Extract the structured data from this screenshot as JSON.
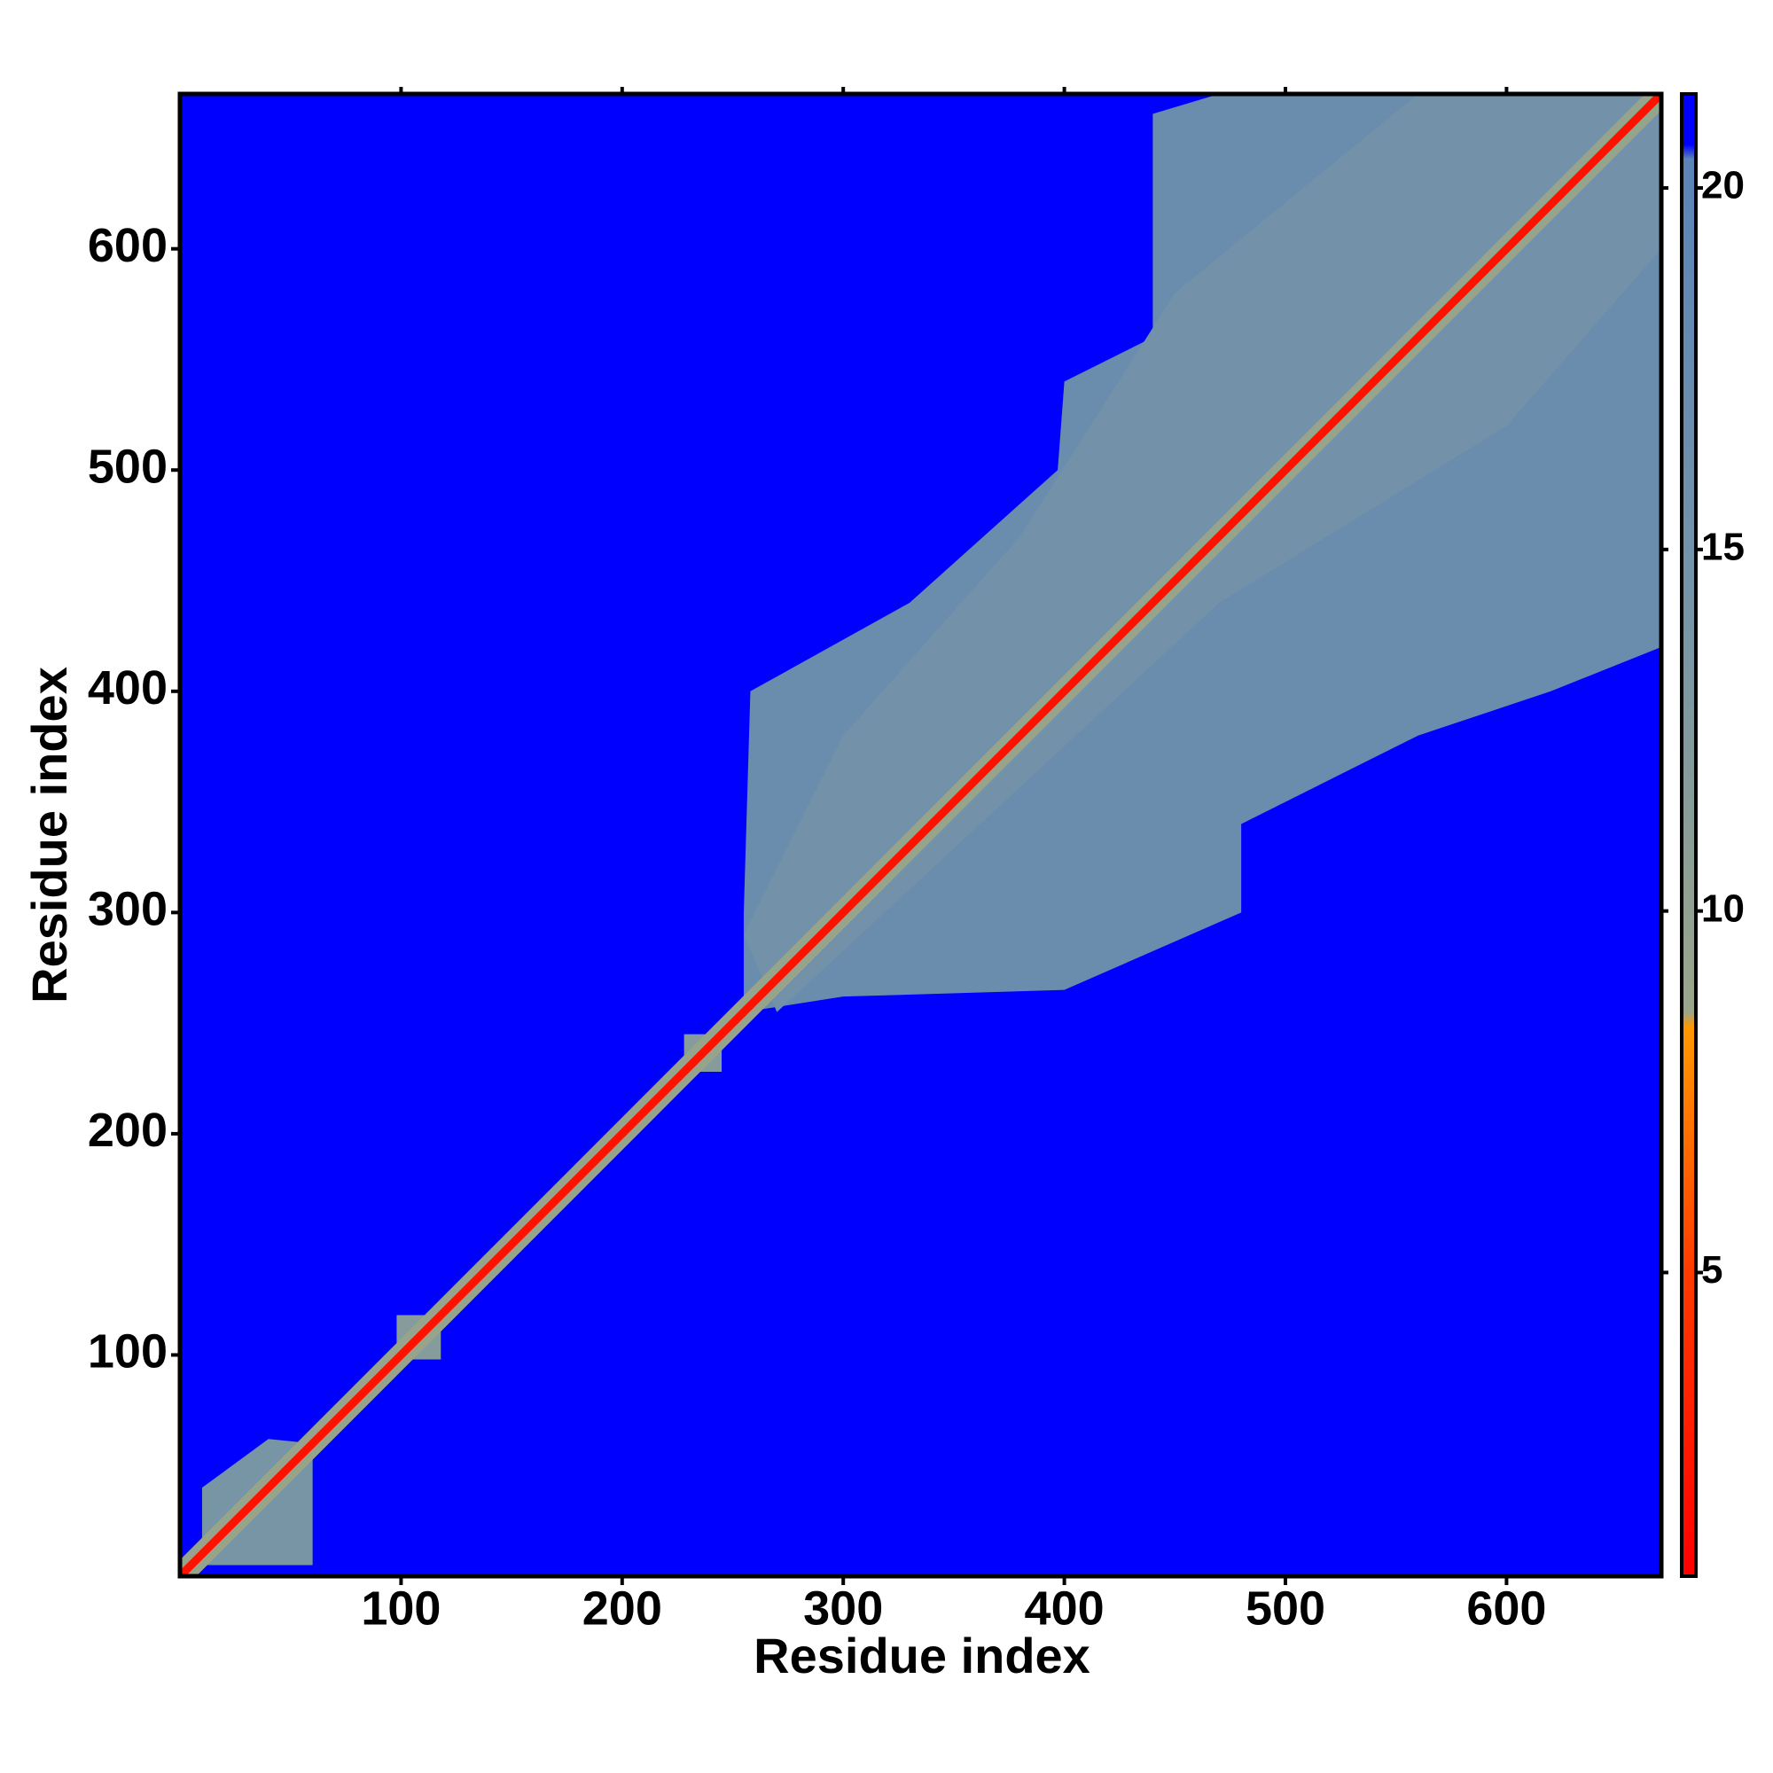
{
  "chart_data": {
    "type": "heatmap",
    "xlabel": "Residue index",
    "ylabel": "Residue index",
    "xlim": [
      0,
      670
    ],
    "ylim": [
      0,
      670
    ],
    "xticks": [
      100,
      200,
      300,
      400,
      500,
      600
    ],
    "yticks": [
      100,
      200,
      300,
      400,
      500,
      600
    ],
    "background": 21,
    "regions": [
      {
        "x": [
          10,
          60,
          60,
          40,
          10
        ],
        "y": [
          5,
          5,
          60,
          62,
          40
        ],
        "value": 14
      },
      {
        "x": [
          255,
          300,
          400,
          480,
          480,
          560,
          620,
          670,
          670,
          470,
          440,
          440,
          400,
          397,
          330,
          258,
          255
        ],
        "y": [
          255,
          262,
          265,
          300,
          340,
          380,
          400,
          420,
          670,
          670,
          661,
          560,
          540,
          500,
          440,
          400,
          300
        ],
        "value": 17
      },
      {
        "x": [
          270,
          470,
          600,
          670,
          670,
          560,
          450,
          380,
          300,
          255
        ],
        "y": [
          255,
          440,
          520,
          600,
          670,
          670,
          580,
          470,
          380,
          290
        ],
        "value": 15
      },
      {
        "x": [
          98,
          118,
          118,
          98
        ],
        "y": [
          98,
          98,
          118,
          118
        ],
        "value": 12
      },
      {
        "x": [
          228,
          245,
          245,
          228
        ],
        "y": [
          228,
          228,
          245,
          245
        ],
        "value": 12
      }
    ],
    "lines": [
      {
        "x": [
          1,
          670
        ],
        "y": [
          1,
          670
        ],
        "value": 9
      },
      {
        "x": [
          1,
          670
        ],
        "y": [
          1,
          670
        ],
        "value": 2
      }
    ],
    "colorbar": {
      "lim": [
        0.8,
        21.3
      ],
      "ticks": [
        5,
        10,
        15,
        20
      ],
      "colormap": [
        {
          "value": 0.8,
          "color": "#ff0000"
        },
        {
          "value": 5,
          "color": "#ff3a00"
        },
        {
          "value": 8.4,
          "color": "#ff9900"
        },
        {
          "value": 8.6,
          "color": "#9aa58a"
        },
        {
          "value": 14,
          "color": "#7895a6"
        },
        {
          "value": 20.4,
          "color": "#5a84b8"
        },
        {
          "value": 20.6,
          "color": "#0000ff"
        },
        {
          "value": 21.3,
          "color": "#0000ff"
        }
      ]
    }
  }
}
